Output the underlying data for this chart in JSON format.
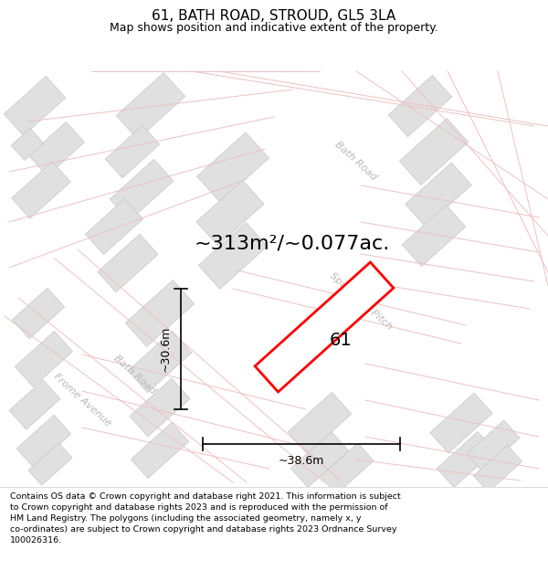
{
  "title": "61, BATH ROAD, STROUD, GL5 3LA",
  "subtitle": "Map shows position and indicative extent of the property.",
  "area_text": "~313m²/~0.077ac.",
  "label_61": "61",
  "dim_width": "~38.6m",
  "dim_height": "~30.6m",
  "footer": "Contains OS data © Crown copyright and database right 2021. This information is subject to Crown copyright and database rights 2023 and is reproduced with the permission of HM Land Registry. The polygons (including the associated geometry, namely x, y co-ordinates) are subject to Crown copyright and database rights 2023 Ordnance Survey 100026316.",
  "map_bg": "#ffffff",
  "road_line_color": "#f0c0c0",
  "building_fill": "#e0e0e0",
  "building_edge": "#c8c8c8",
  "highlight_color": "#ff0000",
  "street_label_color": "#b8b8b8",
  "title_fontsize": 11,
  "subtitle_fontsize": 9,
  "area_fontsize": 16,
  "label_fontsize": 14,
  "footer_fontsize": 6.8,
  "dim_fontsize": 9,
  "street_fontsize": 8
}
